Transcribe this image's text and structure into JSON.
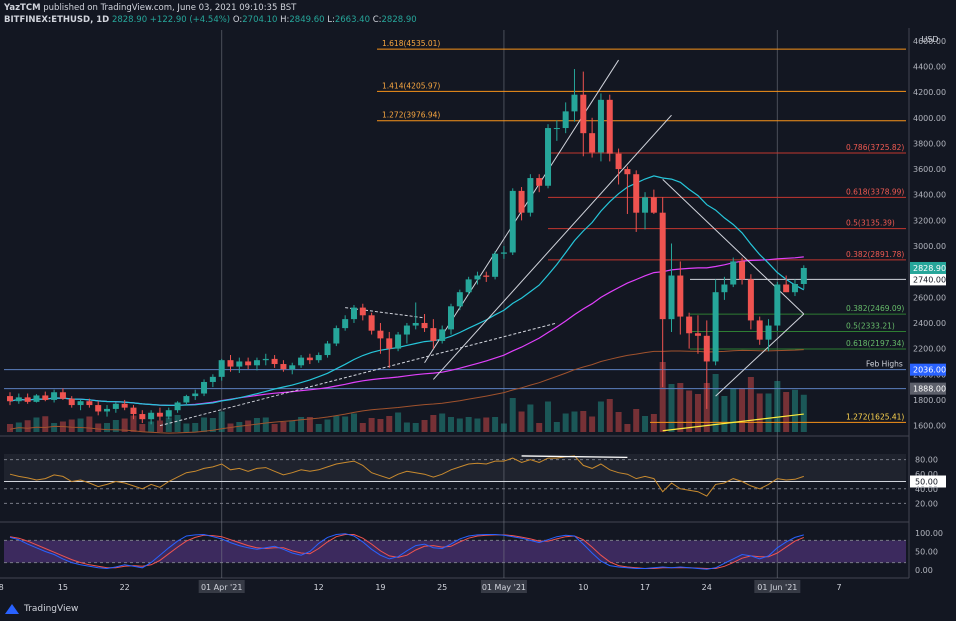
{
  "header": {
    "line1_user": "YazTCM",
    "line1_rest": "published on TradingView.com, June 03, 2021 09:10:35 BST",
    "symbol": "BITFINEX:ETHUSD, 1D",
    "change": "2828.90  +122.90 (+4.54%)",
    "o_label": "O:",
    "o_value": "2704.10",
    "h_label": "H:",
    "h_value": "2849.60",
    "l_label": "L:",
    "l_value": "2663.40",
    "c_label": "C:",
    "c_value": "2828.90"
  },
  "footer": {
    "logo_text": "TradingView"
  },
  "colors": {
    "background": "#131722",
    "bull": "#26a69a",
    "bear": "#ef5350",
    "fib_ext": "#f7931a",
    "fib_res": "#e53935",
    "fib_sup": "#4caf50",
    "ema20": "#26c6da",
    "ema50": "#e040fb",
    "ema100": "#a0522d",
    "ema200": "#ffeb3b",
    "rsi": "#c88a2e",
    "stoch_k": "#2962ff",
    "stoch_d": "#ef5350"
  },
  "chart_data": {
    "type": "candlestick",
    "price_axis": {
      "unit_label": "USD",
      "ticks": [
        1600,
        1800,
        2000,
        2200,
        2400,
        2600,
        2800,
        3000,
        3200,
        3400,
        3600,
        3800,
        4000,
        4200,
        4400,
        4600
      ],
      "ylim": [
        1550,
        4700
      ]
    },
    "x_axis": {
      "labels": [
        "8",
        "15",
        "22",
        "01 Apr '21",
        "12",
        "19",
        "25",
        "01 May '21",
        "10",
        "17",
        "24",
        "01 Jun '21",
        "7"
      ],
      "highlighted": [
        "01 Apr '21",
        "01 May '21",
        "01 Jun '21"
      ]
    },
    "candles": [
      {
        "o": 1830,
        "h": 1860,
        "l": 1760,
        "c": 1790
      },
      {
        "o": 1790,
        "h": 1850,
        "l": 1770,
        "c": 1820
      },
      {
        "o": 1820,
        "h": 1850,
        "l": 1770,
        "c": 1785
      },
      {
        "o": 1785,
        "h": 1845,
        "l": 1780,
        "c": 1835
      },
      {
        "o": 1835,
        "h": 1865,
        "l": 1790,
        "c": 1800
      },
      {
        "o": 1800,
        "h": 1880,
        "l": 1780,
        "c": 1860
      },
      {
        "o": 1860,
        "h": 1890,
        "l": 1800,
        "c": 1810
      },
      {
        "o": 1810,
        "h": 1830,
        "l": 1740,
        "c": 1760
      },
      {
        "o": 1760,
        "h": 1800,
        "l": 1720,
        "c": 1790
      },
      {
        "o": 1790,
        "h": 1810,
        "l": 1740,
        "c": 1760
      },
      {
        "o": 1760,
        "h": 1790,
        "l": 1680,
        "c": 1710
      },
      {
        "o": 1710,
        "h": 1760,
        "l": 1670,
        "c": 1730
      },
      {
        "o": 1730,
        "h": 1780,
        "l": 1700,
        "c": 1770
      },
      {
        "o": 1770,
        "h": 1800,
        "l": 1720,
        "c": 1740
      },
      {
        "o": 1740,
        "h": 1760,
        "l": 1650,
        "c": 1690
      },
      {
        "o": 1690,
        "h": 1720,
        "l": 1620,
        "c": 1650
      },
      {
        "o": 1650,
        "h": 1720,
        "l": 1610,
        "c": 1700
      },
      {
        "o": 1700,
        "h": 1740,
        "l": 1640,
        "c": 1670
      },
      {
        "o": 1670,
        "h": 1740,
        "l": 1650,
        "c": 1720
      },
      {
        "o": 1720,
        "h": 1790,
        "l": 1700,
        "c": 1780
      },
      {
        "o": 1780,
        "h": 1840,
        "l": 1760,
        "c": 1830
      },
      {
        "o": 1830,
        "h": 1880,
        "l": 1800,
        "c": 1850
      },
      {
        "o": 1850,
        "h": 1960,
        "l": 1830,
        "c": 1940
      },
      {
        "o": 1940,
        "h": 2000,
        "l": 1900,
        "c": 1980
      },
      {
        "o": 1980,
        "h": 2120,
        "l": 1950,
        "c": 2110
      },
      {
        "o": 2110,
        "h": 2150,
        "l": 2020,
        "c": 2060
      },
      {
        "o": 2060,
        "h": 2130,
        "l": 2010,
        "c": 2100
      },
      {
        "o": 2100,
        "h": 2130,
        "l": 2040,
        "c": 2070
      },
      {
        "o": 2070,
        "h": 2130,
        "l": 2030,
        "c": 2110
      },
      {
        "o": 2110,
        "h": 2160,
        "l": 2070,
        "c": 2120
      },
      {
        "o": 2120,
        "h": 2150,
        "l": 2050,
        "c": 2080
      },
      {
        "o": 2080,
        "h": 2110,
        "l": 2020,
        "c": 2040
      },
      {
        "o": 2040,
        "h": 2090,
        "l": 2000,
        "c": 2070
      },
      {
        "o": 2070,
        "h": 2150,
        "l": 2050,
        "c": 2130
      },
      {
        "o": 2130,
        "h": 2160,
        "l": 2080,
        "c": 2110
      },
      {
        "o": 2110,
        "h": 2170,
        "l": 2090,
        "c": 2150
      },
      {
        "o": 2150,
        "h": 2260,
        "l": 2130,
        "c": 2240
      },
      {
        "o": 2240,
        "h": 2380,
        "l": 2220,
        "c": 2360
      },
      {
        "o": 2360,
        "h": 2460,
        "l": 2340,
        "c": 2430
      },
      {
        "o": 2430,
        "h": 2540,
        "l": 2400,
        "c": 2520
      },
      {
        "o": 2520,
        "h": 2550,
        "l": 2420,
        "c": 2460
      },
      {
        "o": 2460,
        "h": 2480,
        "l": 2310,
        "c": 2340
      },
      {
        "o": 2340,
        "h": 2400,
        "l": 2160,
        "c": 2280
      },
      {
        "o": 2280,
        "h": 2330,
        "l": 2050,
        "c": 2200
      },
      {
        "o": 2200,
        "h": 2330,
        "l": 2180,
        "c": 2310
      },
      {
        "o": 2310,
        "h": 2400,
        "l": 2240,
        "c": 2380
      },
      {
        "o": 2380,
        "h": 2560,
        "l": 2350,
        "c": 2400
      },
      {
        "o": 2400,
        "h": 2470,
        "l": 2330,
        "c": 2360
      },
      {
        "o": 2360,
        "h": 2430,
        "l": 2200,
        "c": 2260
      },
      {
        "o": 2260,
        "h": 2380,
        "l": 2240,
        "c": 2350
      },
      {
        "o": 2350,
        "h": 2550,
        "l": 2310,
        "c": 2530
      },
      {
        "o": 2530,
        "h": 2660,
        "l": 2500,
        "c": 2640
      },
      {
        "o": 2640,
        "h": 2760,
        "l": 2620,
        "c": 2740
      },
      {
        "o": 2740,
        "h": 2800,
        "l": 2700,
        "c": 2770
      },
      {
        "o": 2770,
        "h": 2800,
        "l": 2720,
        "c": 2760
      },
      {
        "o": 2760,
        "h": 2960,
        "l": 2740,
        "c": 2940
      },
      {
        "o": 2940,
        "h": 3000,
        "l": 2900,
        "c": 2950
      },
      {
        "o": 2950,
        "h": 3450,
        "l": 2930,
        "c": 3430
      },
      {
        "o": 3430,
        "h": 3460,
        "l": 3200,
        "c": 3260
      },
      {
        "o": 3260,
        "h": 3560,
        "l": 3230,
        "c": 3530
      },
      {
        "o": 3530,
        "h": 3560,
        "l": 3420,
        "c": 3470
      },
      {
        "o": 3470,
        "h": 3950,
        "l": 3450,
        "c": 3920
      },
      {
        "o": 3920,
        "h": 3980,
        "l": 3820,
        "c": 3920
      },
      {
        "o": 3920,
        "h": 4120,
        "l": 3880,
        "c": 4050
      },
      {
        "o": 4050,
        "h": 4380,
        "l": 3970,
        "c": 4180
      },
      {
        "o": 4180,
        "h": 4360,
        "l": 3700,
        "c": 3880
      },
      {
        "o": 3880,
        "h": 4000,
        "l": 3690,
        "c": 3730
      },
      {
        "o": 3730,
        "h": 4190,
        "l": 3660,
        "c": 4140
      },
      {
        "o": 4140,
        "h": 4180,
        "l": 3660,
        "c": 3720
      },
      {
        "o": 3720,
        "h": 3760,
        "l": 3480,
        "c": 3600
      },
      {
        "o": 3600,
        "h": 3620,
        "l": 3250,
        "c": 3560
      },
      {
        "o": 3560,
        "h": 3590,
        "l": 3110,
        "c": 3260
      },
      {
        "o": 3260,
        "h": 3420,
        "l": 3130,
        "c": 3380
      },
      {
        "o": 3380,
        "h": 3440,
        "l": 3250,
        "c": 3260
      },
      {
        "o": 3260,
        "h": 3380,
        "l": 1900,
        "c": 2430
      },
      {
        "o": 2430,
        "h": 3020,
        "l": 2330,
        "c": 2770
      },
      {
        "o": 2770,
        "h": 2880,
        "l": 2310,
        "c": 2450
      },
      {
        "o": 2450,
        "h": 2480,
        "l": 2200,
        "c": 2320
      },
      {
        "o": 2320,
        "h": 2460,
        "l": 2160,
        "c": 2300
      },
      {
        "o": 2300,
        "h": 2420,
        "l": 1730,
        "c": 2100
      },
      {
        "o": 2100,
        "h": 2740,
        "l": 2070,
        "c": 2640
      },
      {
        "o": 2640,
        "h": 2760,
        "l": 2580,
        "c": 2700
      },
      {
        "o": 2700,
        "h": 2910,
        "l": 2680,
        "c": 2880
      },
      {
        "o": 2880,
        "h": 2910,
        "l": 2700,
        "c": 2740
      },
      {
        "o": 2740,
        "h": 2780,
        "l": 2350,
        "c": 2420
      },
      {
        "o": 2420,
        "h": 2450,
        "l": 2230,
        "c": 2270
      },
      {
        "o": 2270,
        "h": 2430,
        "l": 2180,
        "c": 2380
      },
      {
        "o": 2380,
        "h": 2720,
        "l": 2340,
        "c": 2700
      },
      {
        "o": 2700,
        "h": 2770,
        "l": 2640,
        "c": 2640
      },
      {
        "o": 2640,
        "h": 2740,
        "l": 2610,
        "c": 2704
      },
      {
        "o": 2704,
        "h": 2849.6,
        "l": 2663.4,
        "c": 2828.9
      }
    ],
    "fib_extensions": [
      {
        "label": "1.618(4535.01)",
        "value": 4535.01
      },
      {
        "label": "1.414(4205.97)",
        "value": 4205.97
      },
      {
        "label": "1.272(3976.94)",
        "value": 3976.94
      }
    ],
    "fib_resistance": [
      {
        "label": "0.786(3725.82)",
        "value": 3725.82
      },
      {
        "label": "0.618(3378.99)",
        "value": 3378.99
      },
      {
        "label": "0.5(3135.39)",
        "value": 3135.39
      },
      {
        "label": "0.382(2891.78)",
        "value": 2891.78
      }
    ],
    "fib_support": [
      {
        "label": "0.382(2469.09)",
        "value": 2469.09
      },
      {
        "label": "0.5(2333.21)",
        "value": 2333.21
      },
      {
        "label": "0.618(2197.34)",
        "value": 2197.34
      }
    ],
    "fib_low_ext": {
      "label": "1.272(1625.41)",
      "value": 1625.41
    },
    "level_lines": [
      {
        "label": "Feb Highs",
        "value": 2036.0,
        "tag": "2036.00"
      },
      {
        "label": "",
        "value": 1888.0,
        "tag": "1888.00"
      },
      {
        "label": "",
        "value": 2740.0,
        "tag": "2740.00"
      }
    ],
    "current_price_tag": "2828.90",
    "rsi": {
      "ticks": [
        "80.00",
        "60.00",
        "50.00",
        "40.00",
        "20.00"
      ],
      "values": [
        60,
        57,
        55,
        52,
        54,
        59,
        57,
        50,
        52,
        48,
        43,
        46,
        50,
        48,
        44,
        40,
        46,
        42,
        50,
        56,
        62,
        64,
        68,
        70,
        74,
        66,
        68,
        64,
        68,
        69,
        64,
        59,
        62,
        66,
        64,
        66,
        70,
        74,
        76,
        78,
        72,
        62,
        58,
        54,
        60,
        64,
        62,
        60,
        56,
        60,
        66,
        70,
        74,
        75,
        74,
        78,
        78,
        82,
        76,
        80,
        76,
        82,
        82,
        84,
        85,
        72,
        68,
        74,
        66,
        62,
        60,
        54,
        57,
        54,
        36,
        48,
        40,
        38,
        36,
        30,
        46,
        48,
        54,
        50,
        44,
        40,
        46,
        54,
        52,
        53,
        57
      ]
    },
    "stoch": {
      "ticks": [
        "100.00",
        "50.00",
        "0.00"
      ],
      "k": [
        88,
        82,
        70,
        60,
        50,
        42,
        30,
        20,
        14,
        10,
        6,
        4,
        8,
        14,
        10,
        6,
        20,
        40,
        60,
        78,
        92,
        95,
        96,
        90,
        84,
        74,
        66,
        60,
        56,
        60,
        64,
        56,
        46,
        40,
        50,
        72,
        88,
        96,
        98,
        92,
        76,
        56,
        40,
        30,
        36,
        52,
        66,
        70,
        60,
        58,
        70,
        84,
        92,
        95,
        96,
        96,
        94,
        90,
        86,
        80,
        74,
        82,
        90,
        94,
        92,
        70,
        46,
        24,
        12,
        8,
        6,
        4,
        4,
        6,
        8,
        6,
        8,
        6,
        4,
        2,
        6,
        18,
        30,
        42,
        38,
        30,
        38,
        60,
        76,
        88,
        95
      ],
      "d": [
        90,
        86,
        78,
        68,
        58,
        48,
        38,
        28,
        20,
        14,
        10,
        6,
        6,
        10,
        12,
        10,
        14,
        26,
        44,
        62,
        78,
        88,
        94,
        93,
        90,
        82,
        74,
        66,
        60,
        58,
        60,
        60,
        52,
        46,
        44,
        58,
        76,
        90,
        96,
        96,
        86,
        70,
        52,
        38,
        34,
        40,
        54,
        64,
        66,
        62,
        64,
        76,
        86,
        92,
        94,
        95,
        95,
        93,
        89,
        84,
        78,
        78,
        84,
        90,
        92,
        82,
        62,
        40,
        22,
        12,
        8,
        6,
        4,
        4,
        6,
        6,
        6,
        6,
        5,
        4,
        4,
        10,
        20,
        32,
        38,
        36,
        36,
        46,
        62,
        78,
        88
      ]
    }
  }
}
